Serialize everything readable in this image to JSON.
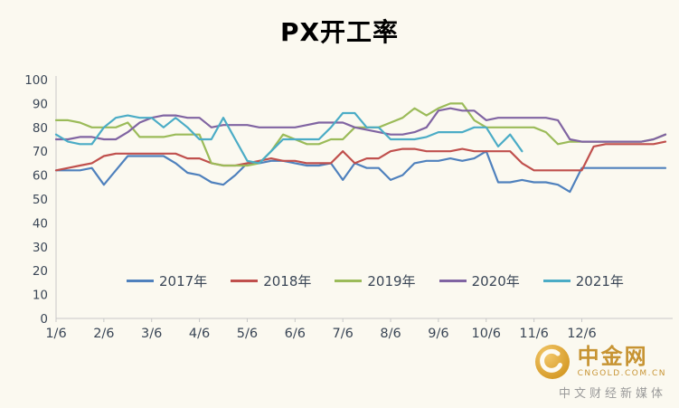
{
  "chart_data": {
    "type": "line",
    "title": "PX开工率",
    "xlabel": "",
    "ylabel": "",
    "ylim": [
      0,
      100
    ],
    "y_step": 10,
    "grid": false,
    "legend_position": "bottom-inside",
    "n_points": 52,
    "tick_every": 4,
    "x_tick_labels": [
      "1/6",
      "2/6",
      "3/6",
      "4/6",
      "5/6",
      "6/6",
      "7/6",
      "8/6",
      "9/6",
      "10/6",
      "11/6",
      "12/6"
    ],
    "series": [
      {
        "name": "2017年",
        "color": "#4F81BD",
        "values": [
          62,
          62,
          62,
          63,
          56,
          62,
          68,
          68,
          68,
          68,
          65,
          61,
          60,
          57,
          56,
          60,
          65,
          65,
          66,
          66,
          65,
          64,
          64,
          65,
          58,
          65,
          63,
          63,
          58,
          60,
          65,
          66,
          66,
          67,
          66,
          67,
          70,
          57,
          57,
          58,
          57,
          57,
          56,
          53,
          63,
          63,
          63,
          63,
          63,
          63,
          63,
          63
        ]
      },
      {
        "name": "2018年",
        "color": "#C0504D",
        "values": [
          62,
          63,
          64,
          65,
          68,
          69,
          69,
          69,
          69,
          69,
          69,
          67,
          67,
          65,
          64,
          64,
          65,
          66,
          67,
          66,
          66,
          65,
          65,
          65,
          70,
          65,
          67,
          67,
          70,
          71,
          71,
          70,
          70,
          70,
          71,
          70,
          70,
          70,
          70,
          65,
          62,
          62,
          62,
          62,
          62,
          72,
          73,
          73,
          73,
          73,
          73,
          74
        ]
      },
      {
        "name": "2019年",
        "color": "#9BBB59",
        "values": [
          83,
          83,
          82,
          80,
          80,
          80,
          82,
          76,
          76,
          76,
          77,
          77,
          77,
          65,
          64,
          64,
          64,
          65,
          70,
          77,
          75,
          73,
          73,
          75,
          75,
          80,
          80,
          80,
          82,
          84,
          88,
          85,
          88,
          90,
          90,
          83,
          80,
          80,
          80,
          80,
          80,
          78,
          73,
          74,
          74,
          74,
          74,
          74,
          74,
          74,
          75,
          77
        ]
      },
      {
        "name": "2020年",
        "color": "#8064A2",
        "values": [
          75,
          75,
          76,
          76,
          75,
          75,
          78,
          82,
          84,
          85,
          85,
          84,
          84,
          80,
          81,
          81,
          81,
          80,
          80,
          80,
          80,
          81,
          82,
          82,
          82,
          80,
          79,
          78,
          77,
          77,
          78,
          80,
          87,
          88,
          87,
          87,
          83,
          84,
          84,
          84,
          84,
          84,
          83,
          75,
          74,
          74,
          74,
          74,
          74,
          74,
          75,
          77
        ]
      },
      {
        "name": "2021年",
        "color": "#4BACC6",
        "values": [
          77,
          74,
          73,
          73,
          80,
          84,
          85,
          84,
          84,
          80,
          84,
          80,
          75,
          75,
          84,
          75,
          66,
          65,
          70,
          75,
          75,
          75,
          75,
          80,
          86,
          86,
          80,
          80,
          75,
          75,
          75,
          76,
          78,
          78,
          78,
          80,
          80,
          72,
          77,
          70,
          null,
          null,
          null,
          null,
          null,
          null,
          null,
          null,
          null,
          null,
          null,
          null
        ]
      }
    ]
  },
  "watermark": {
    "brand": "中金网",
    "domain": "CNGOLD.COM.CN",
    "tagline": "中文财经新媒体",
    "gold": "#C79433",
    "gray": "#9A9A9A"
  },
  "colors": {
    "background": "#FBF9F0",
    "axis": "#C8C8C8",
    "label": "#3A4656",
    "title": "#000000"
  }
}
